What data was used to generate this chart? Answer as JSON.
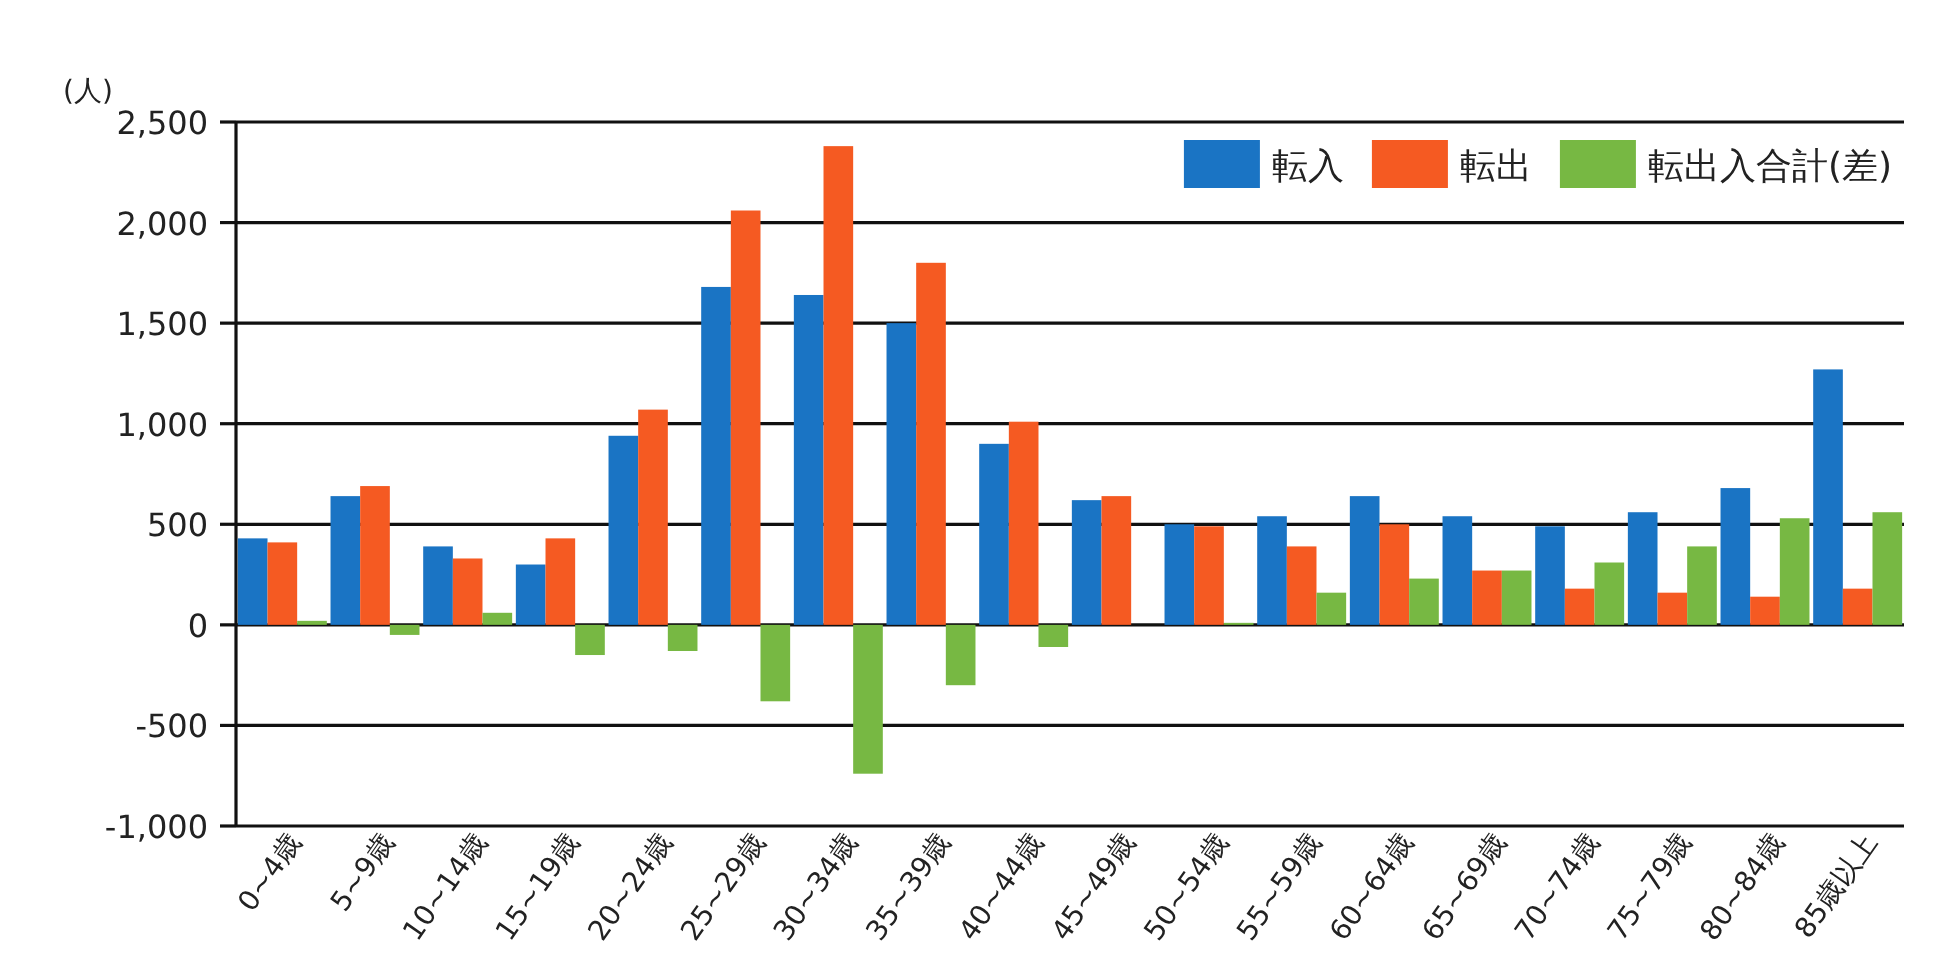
{
  "chart_data": {
    "type": "bar",
    "ylabel": "(人)",
    "categories": [
      "0~4歳",
      "5~9歳",
      "10~14歳",
      "15~19歳",
      "20~24歳",
      "25~29歳",
      "30~34歳",
      "35~39歳",
      "40~44歳",
      "45~49歳",
      "50~54歳",
      "55~59歳",
      "60~64歳",
      "65~69歳",
      "70~74歳",
      "75~79歳",
      "80~84歳",
      "85歳以上"
    ],
    "series": [
      {
        "name": "転入",
        "color": "#1a74c4",
        "values": [
          430,
          640,
          390,
          300,
          940,
          1680,
          1640,
          1500,
          900,
          620,
          500,
          540,
          640,
          540,
          490,
          560,
          680,
          1270
        ]
      },
      {
        "name": "転出",
        "color": "#f55a22",
        "values": [
          410,
          690,
          330,
          430,
          1070,
          2060,
          2380,
          1800,
          1010,
          640,
          490,
          390,
          500,
          270,
          180,
          160,
          140,
          180
        ]
      },
      {
        "name": "転出入合計(差)",
        "color": "#77b843",
        "values": [
          20,
          -50,
          60,
          -150,
          -130,
          -380,
          -740,
          -300,
          -110,
          0,
          10,
          160,
          230,
          270,
          310,
          390,
          530,
          560
        ]
      }
    ],
    "ylim": [
      -1000,
      2500
    ],
    "yticks": [
      {
        "value": -1000,
        "label": "-1,000"
      },
      -500,
      0,
      500,
      {
        "value": 1000,
        "label": "1,000"
      },
      {
        "value": 1500,
        "label": "1,500"
      },
      {
        "value": 2000,
        "label": "2,000"
      },
      {
        "value": 2500,
        "label": "2,500"
      }
    ],
    "grid": "y",
    "legend": "top right"
  }
}
